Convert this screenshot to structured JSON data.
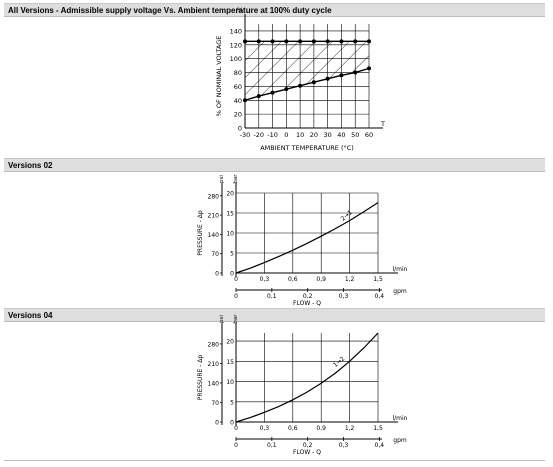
{
  "sections": [
    {
      "title": "All Versions - Admissible supply voltage Vs. Ambient temperature at 100% duty cycle"
    },
    {
      "title": "Versions 02"
    },
    {
      "title": "Versions 04"
    }
  ],
  "chart_data": [
    {
      "type": "line",
      "title": "",
      "xlabel": "AMBIENT TEMPERATURE (°C)",
      "ylabel": "% OF NOMINAL VOLTAGE",
      "y_unit": "%",
      "x_axis_end_label": "T",
      "x_ticks": [
        "-30",
        "-20",
        "-10",
        "0",
        "10",
        "20",
        "30",
        "40",
        "50",
        "60"
      ],
      "y_ticks": [
        "0",
        "20",
        "40",
        "60",
        "80",
        "100",
        "120",
        "140"
      ],
      "xlim": [
        -30,
        60
      ],
      "ylim": [
        0,
        150
      ],
      "grid": true,
      "hatched_region": "between series",
      "series": [
        {
          "x": [
            -30,
            -20,
            -10,
            0,
            10,
            20,
            30,
            40,
            50,
            60
          ],
          "y": [
            125,
            125,
            125,
            125,
            125,
            125,
            125,
            125,
            125,
            125
          ]
        },
        {
          "x": [
            -30,
            -20,
            -10,
            0,
            10,
            20,
            30,
            40,
            50,
            60
          ],
          "y": [
            40,
            46,
            51,
            56,
            61,
            66,
            71,
            76,
            80,
            86
          ]
        }
      ]
    },
    {
      "type": "line",
      "title": "",
      "xlabel": "FLOW - Q",
      "ylabel": "PRESSURE - Δp",
      "y_unit_left": "psi",
      "y_unit_right": "bar",
      "x_unit_top": "l/min",
      "x_unit_bottom": "gpm",
      "x_ticks_top": [
        "0",
        "0,3",
        "0,6",
        "0,9",
        "1,2",
        "1,5"
      ],
      "x_ticks_bottom": [
        "0",
        "0,1",
        "0,2",
        "0,3",
        "0,4"
      ],
      "y_ticks_bar": [
        "0",
        "5",
        "10",
        "15",
        "20"
      ],
      "y_ticks_psi": [
        "0",
        "70",
        "140",
        "210",
        "280"
      ],
      "xlim": [
        0,
        1.5
      ],
      "ylim": [
        0,
        20
      ],
      "grid": true,
      "series": [
        {
          "name": "2→1",
          "x": [
            0,
            0.15,
            0.3,
            0.45,
            0.6,
            0.75,
            0.9,
            1.05,
            1.2,
            1.35,
            1.5
          ],
          "y": [
            0,
            1.2,
            2.6,
            4.1,
            5.7,
            7.4,
            9.2,
            11.1,
            13.1,
            15.3,
            17.6
          ]
        }
      ]
    },
    {
      "type": "line",
      "title": "",
      "xlabel": "FLOW - Q",
      "ylabel": "PRESSURE - Δp",
      "y_unit_left": "psi",
      "y_unit_right": "bar",
      "x_unit_top": "l/min",
      "x_unit_bottom": "gpm",
      "x_ticks_top": [
        "0",
        "0,3",
        "0,6",
        "0,9",
        "1,2",
        "1,5"
      ],
      "x_ticks_bottom": [
        "0",
        "0,1",
        "0,2",
        "0,3",
        "0,4"
      ],
      "y_ticks_bar": [
        "0",
        "5",
        "10",
        "15",
        "20"
      ],
      "y_ticks_psi": [
        "0",
        "70",
        "140",
        "210",
        "280"
      ],
      "xlim": [
        0,
        1.5
      ],
      "ylim": [
        0,
        22
      ],
      "grid": true,
      "series": [
        {
          "name": "1→2",
          "x": [
            0,
            0.15,
            0.3,
            0.45,
            0.6,
            0.75,
            0.9,
            1.05,
            1.2,
            1.35,
            1.5
          ],
          "y": [
            0,
            1.1,
            2.4,
            3.8,
            5.5,
            7.4,
            9.6,
            12.1,
            15.0,
            18.3,
            22.0
          ]
        }
      ]
    }
  ]
}
